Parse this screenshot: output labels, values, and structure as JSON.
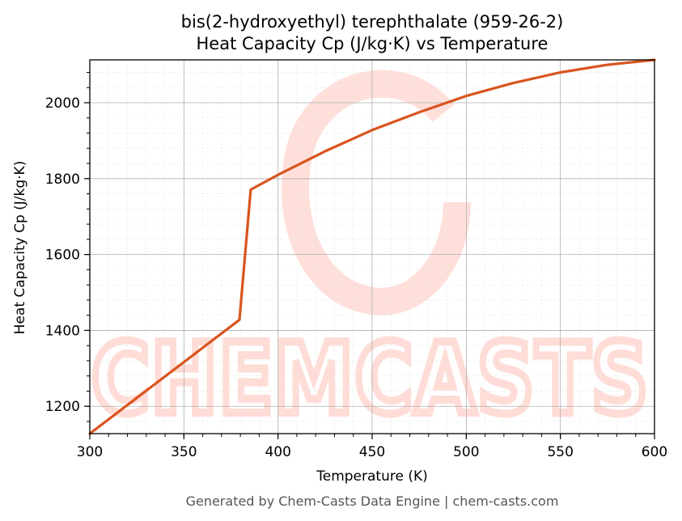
{
  "chart_data": {
    "type": "line",
    "title": "bis(2-hydroxyethyl) terephthalate (959-26-2)",
    "subtitle": "Heat Capacity Cp (J/kg·K) vs Temperature",
    "xlabel": "Temperature (K)",
    "ylabel": "Heat Capacity Cp (J/kg·K)",
    "xlim": [
      300,
      600
    ],
    "ylim": [
      1128,
      2113
    ],
    "x_ticks": [
      300,
      350,
      400,
      450,
      500,
      550,
      600
    ],
    "y_ticks": [
      1200,
      1400,
      1600,
      1800,
      2000
    ],
    "grid": true,
    "series": [
      {
        "color": "#d9541e",
        "x": [
          300,
          379.5,
          385.5,
          400,
          425,
          450,
          475,
          500,
          525,
          550,
          575,
          600
        ],
        "y": [
          1128,
          1428,
          1771,
          1810,
          1872,
          1928,
          1975,
          2018,
          2052,
          2080,
          2100,
          2113
        ]
      }
    ]
  },
  "watermark": {
    "text": "CHEMCASTS",
    "color": "#ffd9d2"
  },
  "footer": {
    "text": "Generated by Chem-Casts Data Engine | chem-casts.com"
  }
}
